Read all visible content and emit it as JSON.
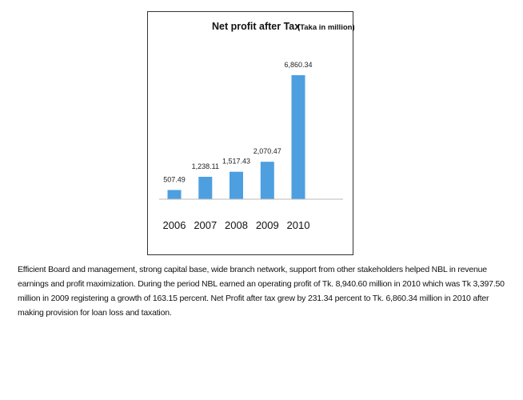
{
  "chart_data": {
    "type": "bar",
    "title": "Net profit after Tax",
    "subtitle": "(Taka in million)",
    "categories": [
      "2006",
      "2007",
      "2008",
      "2009",
      "2010"
    ],
    "values": [
      507.49,
      1238.11,
      1517.43,
      2070.47,
      6860.34
    ],
    "value_labels": [
      "507.49",
      "1,238.11",
      "1,517.43",
      "2,070.47",
      "6,860.34"
    ],
    "bar_color": "#4d9fe0",
    "grid": false,
    "legend": "none"
  },
  "caption": "Efficient Board and management, strong capital base, wide branch network, support from other stakeholders helped NBL in revenue earnings and profit maximization. During the period NBL earned an operating profit of Tk. 8,940.60 million in 2010 which was Tk 3,397.50 million in 2009 registering a growth of 163.15 percent. Net Profit after tax grew by 231.34 percent to Tk. 6,860.34 million in 2010 after making provision for loan loss and taxation."
}
